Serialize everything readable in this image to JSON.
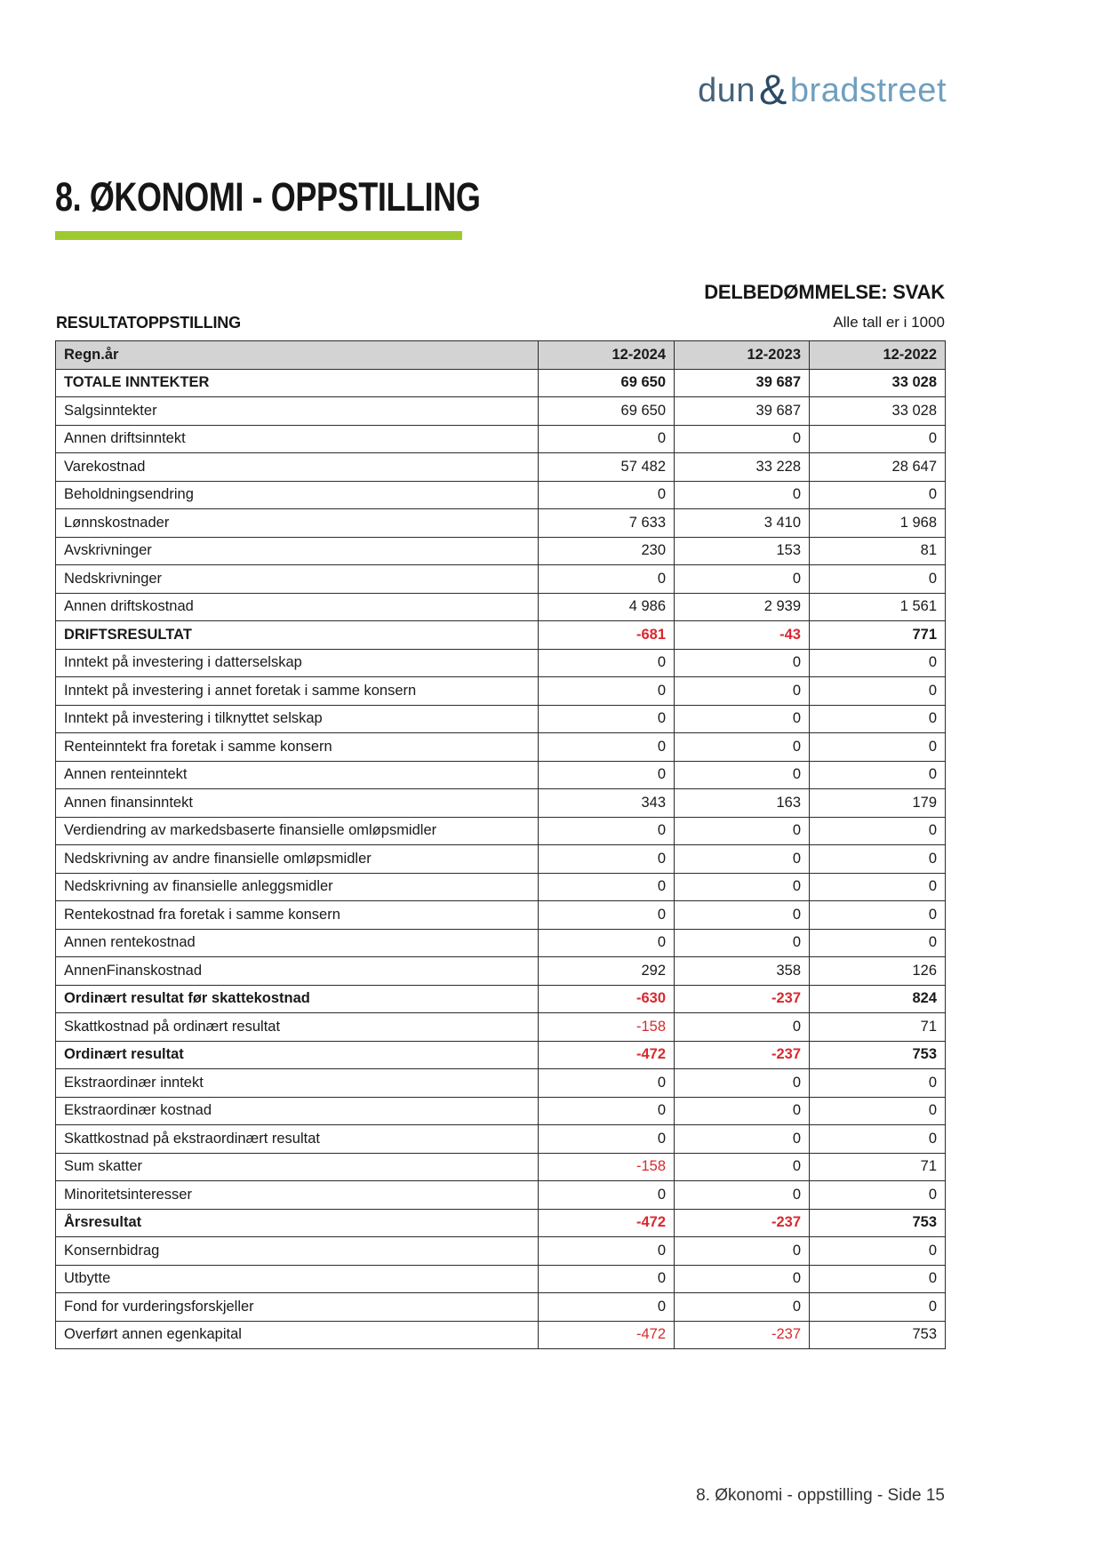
{
  "logo": {
    "dun": "dun",
    "amp": "&",
    "bradstreet": "bradstreet",
    "color_dun": "#46627a",
    "color_amp": "#2d4a66",
    "color_bradstreet": "#6f9fbf"
  },
  "page": {
    "title": "8. ØKONOMI - OPPSTILLING",
    "accent_color": "#9fca2f",
    "footer": "8. Økonomi - oppstilling - Side 15"
  },
  "assessment": {
    "label": "DELBEDØMMELSE: SVAK"
  },
  "table": {
    "section_title": "RESULTATOPPSTILLING",
    "units_note": "Alle tall er i 1000",
    "header_bg": "#d3d3d3",
    "negative_color": "#d8292f",
    "header": {
      "label": "Regn.år",
      "cols": [
        "12-2024",
        "12-2023",
        "12-2022"
      ]
    },
    "rows": [
      {
        "label": "TOTALE INNTEKTER",
        "bold": true,
        "values": [
          "69 650",
          "39 687",
          "33 028"
        ]
      },
      {
        "label": "Salgsinntekter",
        "bold": false,
        "values": [
          "69 650",
          "39 687",
          "33 028"
        ]
      },
      {
        "label": "Annen driftsinntekt",
        "bold": false,
        "values": [
          "0",
          "0",
          "0"
        ]
      },
      {
        "label": "Varekostnad",
        "bold": false,
        "values": [
          "57 482",
          "33 228",
          "28 647"
        ]
      },
      {
        "label": "Beholdningsendring",
        "bold": false,
        "values": [
          "0",
          "0",
          "0"
        ]
      },
      {
        "label": "Lønnskostnader",
        "bold": false,
        "values": [
          "7 633",
          "3 410",
          "1 968"
        ]
      },
      {
        "label": "Avskrivninger",
        "bold": false,
        "values": [
          "230",
          "153",
          "81"
        ]
      },
      {
        "label": "Nedskrivninger",
        "bold": false,
        "values": [
          "0",
          "0",
          "0"
        ]
      },
      {
        "label": "Annen driftskostnad",
        "bold": false,
        "values": [
          "4 986",
          "2 939",
          "1 561"
        ]
      },
      {
        "label": "DRIFTSRESULTAT",
        "bold": true,
        "values": [
          "-681",
          "-43",
          "771"
        ]
      },
      {
        "label": "Inntekt på investering i datterselskap",
        "bold": false,
        "values": [
          "0",
          "0",
          "0"
        ]
      },
      {
        "label": "Inntekt på investering i annet foretak i samme konsern",
        "bold": false,
        "values": [
          "0",
          "0",
          "0"
        ]
      },
      {
        "label": "Inntekt på investering i tilknyttet selskap",
        "bold": false,
        "values": [
          "0",
          "0",
          "0"
        ]
      },
      {
        "label": "Renteinntekt fra foretak i samme konsern",
        "bold": false,
        "values": [
          "0",
          "0",
          "0"
        ]
      },
      {
        "label": "Annen renteinntekt",
        "bold": false,
        "values": [
          "0",
          "0",
          "0"
        ]
      },
      {
        "label": "Annen finansinntekt",
        "bold": false,
        "values": [
          "343",
          "163",
          "179"
        ]
      },
      {
        "label": "Verdiendring av markedsbaserte finansielle omløpsmidler",
        "bold": false,
        "values": [
          "0",
          "0",
          "0"
        ]
      },
      {
        "label": "Nedskrivning av andre finansielle omløpsmidler",
        "bold": false,
        "values": [
          "0",
          "0",
          "0"
        ]
      },
      {
        "label": "Nedskrivning av finansielle anleggsmidler",
        "bold": false,
        "values": [
          "0",
          "0",
          "0"
        ]
      },
      {
        "label": "Rentekostnad fra foretak i samme konsern",
        "bold": false,
        "values": [
          "0",
          "0",
          "0"
        ]
      },
      {
        "label": "Annen rentekostnad",
        "bold": false,
        "values": [
          "0",
          "0",
          "0"
        ]
      },
      {
        "label": "AnnenFinanskostnad",
        "bold": false,
        "values": [
          "292",
          "358",
          "126"
        ]
      },
      {
        "label": "Ordinært resultat før skattekostnad",
        "bold": true,
        "values": [
          "-630",
          "-237",
          "824"
        ]
      },
      {
        "label": "Skattkostnad på ordinært resultat",
        "bold": false,
        "values": [
          "-158",
          "0",
          "71"
        ]
      },
      {
        "label": "Ordinært resultat",
        "bold": true,
        "values": [
          "-472",
          "-237",
          "753"
        ]
      },
      {
        "label": "Ekstraordinær inntekt",
        "bold": false,
        "values": [
          "0",
          "0",
          "0"
        ]
      },
      {
        "label": "Ekstraordinær kostnad",
        "bold": false,
        "values": [
          "0",
          "0",
          "0"
        ]
      },
      {
        "label": "Skattkostnad på ekstraordinært resultat",
        "bold": false,
        "values": [
          "0",
          "0",
          "0"
        ]
      },
      {
        "label": "Sum skatter",
        "bold": false,
        "values": [
          "-158",
          "0",
          "71"
        ]
      },
      {
        "label": "Minoritetsinteresser",
        "bold": false,
        "values": [
          "0",
          "0",
          "0"
        ]
      },
      {
        "label": "Årsresultat",
        "bold": true,
        "values": [
          "-472",
          "-237",
          "753"
        ]
      },
      {
        "label": "Konsernbidrag",
        "bold": false,
        "values": [
          "0",
          "0",
          "0"
        ]
      },
      {
        "label": "Utbytte",
        "bold": false,
        "values": [
          "0",
          "0",
          "0"
        ]
      },
      {
        "label": "Fond for vurderingsforskjeller",
        "bold": false,
        "values": [
          "0",
          "0",
          "0"
        ]
      },
      {
        "label": "Overført annen egenkapital",
        "bold": false,
        "values": [
          "-472",
          "-237",
          "753"
        ]
      }
    ]
  }
}
